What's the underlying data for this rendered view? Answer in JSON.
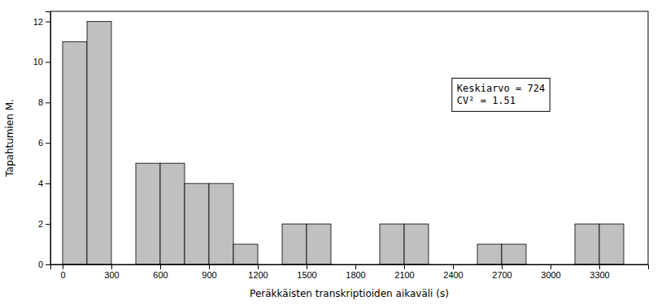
{
  "chart_data": {
    "type": "histogram",
    "bins": [
      0,
      150,
      300,
      450,
      600,
      750,
      900,
      1050,
      1200,
      1350,
      1500,
      1650,
      1800,
      1950,
      2100,
      2250,
      2400,
      2550,
      2700,
      2850,
      3000,
      3150,
      3300,
      3450,
      3600
    ],
    "values": [
      11,
      12,
      0,
      5,
      5,
      4,
      4,
      1,
      0,
      2,
      2,
      0,
      0,
      2,
      2,
      0,
      0,
      1,
      1,
      0,
      0,
      2,
      2,
      0
    ],
    "color": "#c0c0c0",
    "xlim": [
      -75,
      3600
    ],
    "ylim": [
      0,
      12.5
    ],
    "xticks": [
      0,
      300,
      600,
      900,
      1200,
      1500,
      1800,
      2100,
      2400,
      2700,
      3000,
      3300
    ],
    "yticks": [
      0,
      2,
      4,
      6,
      8,
      10,
      12
    ],
    "xlabel": "Peräkkäisten transkriptioiden aikaväli (s)",
    "ylabel": "Tapahtumien M.",
    "annotations": [
      "Keskiarvo = 724",
      "CV² = 1.51"
    ],
    "grid": false
  }
}
